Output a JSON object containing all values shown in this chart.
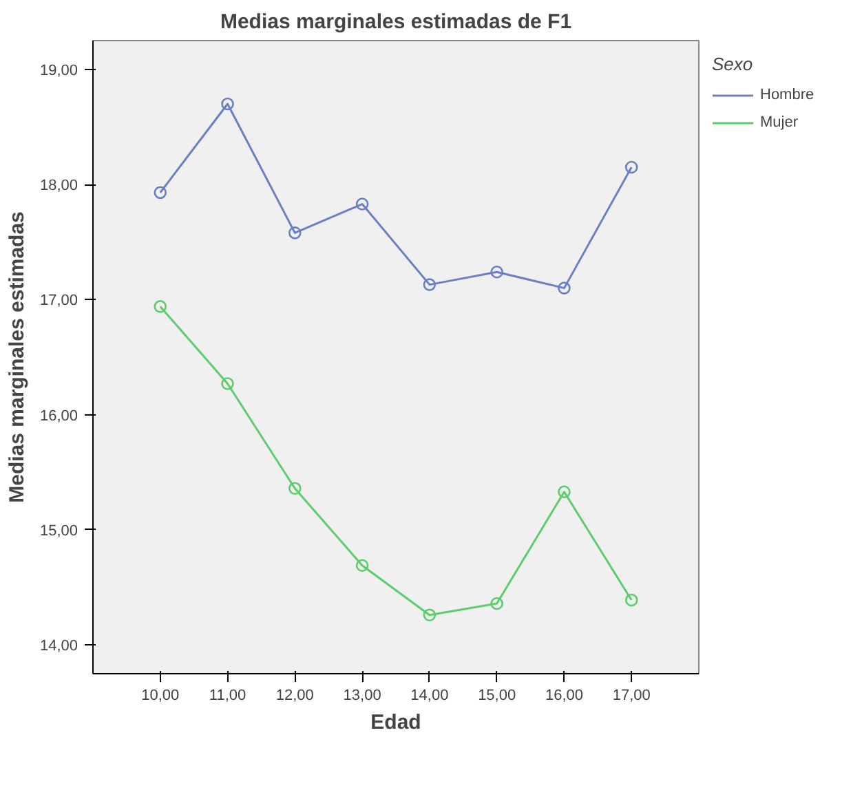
{
  "chart_data": {
    "type": "line",
    "title": "Medias marginales estimadas de F1",
    "xlabel": "Edad",
    "ylabel": "Medias marginales estimadas",
    "legend_title": "Sexo",
    "categories": [
      "10,00",
      "11,00",
      "12,00",
      "13,00",
      "14,00",
      "15,00",
      "16,00",
      "17,00"
    ],
    "series": [
      {
        "name": "Hombre",
        "color": "#6b7fc4",
        "values": [
          17.93,
          18.7,
          17.58,
          17.83,
          17.13,
          17.24,
          17.1,
          18.15
        ]
      },
      {
        "name": "Mujer",
        "color": "#5ccd6a",
        "values": [
          16.94,
          16.27,
          15.36,
          14.69,
          14.26,
          14.36,
          15.33,
          14.39
        ]
      }
    ],
    "ylim": [
      13.75,
      19.25
    ],
    "yticks": [
      {
        "value": 14,
        "label": "14,00"
      },
      {
        "value": 15,
        "label": "15,00"
      },
      {
        "value": 16,
        "label": "16,00"
      },
      {
        "value": 17,
        "label": "17,00"
      },
      {
        "value": 18,
        "label": "18,00"
      },
      {
        "value": 19,
        "label": "19,00"
      }
    ],
    "grid": false,
    "legend": "right",
    "marker": "circle",
    "line_style": "solid"
  }
}
